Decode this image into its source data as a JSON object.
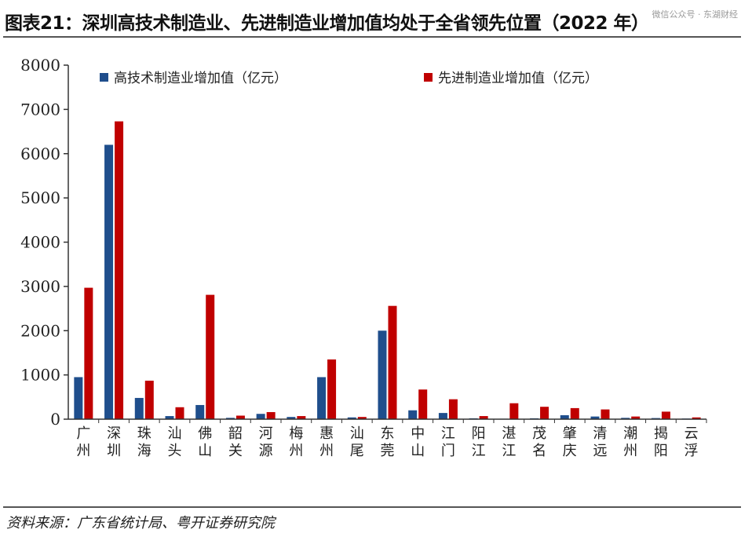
{
  "title": "图表21：深圳高技术制造业、先进制造业增加值均处于全省领先位置（2022 年）",
  "watermark": "微信公众号 · 东湖财经",
  "source": "资料来源：广东省统计局、粤开证券研究院",
  "colors": {
    "series1": "#1f4e8c",
    "series2": "#c00000",
    "axis": "#333333"
  },
  "chart_data": {
    "type": "bar",
    "categories": [
      "广州",
      "深圳",
      "珠海",
      "汕头",
      "佛山",
      "韶关",
      "河源",
      "梅州",
      "惠州",
      "汕尾",
      "东莞",
      "中山",
      "江门",
      "阳江",
      "湛江",
      "茂名",
      "肇庆",
      "清远",
      "潮州",
      "揭阳",
      "云浮"
    ],
    "series": [
      {
        "name": "高技术制造业增加值（亿元）",
        "values": [
          950,
          6200,
          480,
          70,
          320,
          30,
          120,
          50,
          950,
          40,
          2000,
          200,
          140,
          20,
          10,
          20,
          90,
          60,
          30,
          25,
          15
        ]
      },
      {
        "name": "先进制造业增加值（亿元）",
        "values": [
          2970,
          6730,
          870,
          270,
          2810,
          80,
          160,
          70,
          1350,
          50,
          2560,
          670,
          450,
          70,
          360,
          280,
          250,
          220,
          60,
          170,
          40
        ]
      }
    ],
    "ylim": [
      0,
      8000
    ],
    "yticks": [
      0,
      1000,
      2000,
      3000,
      4000,
      5000,
      6000,
      7000,
      8000
    ],
    "xlabel": "",
    "ylabel": "",
    "legend_position": "top",
    "grid": false
  }
}
